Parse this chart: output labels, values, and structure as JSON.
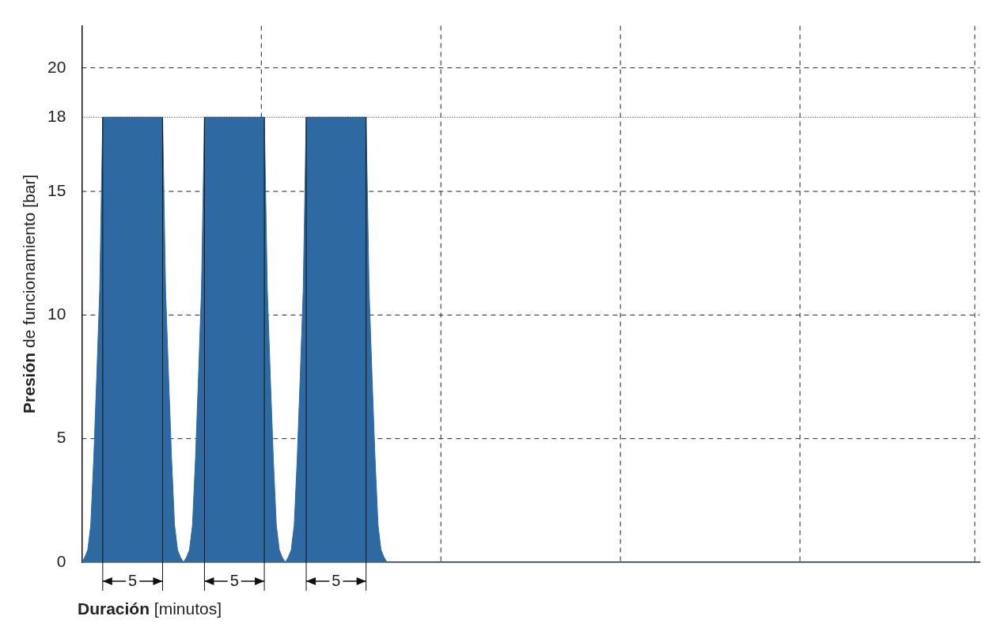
{
  "chart_data": {
    "type": "area",
    "xlabel": "Duración [minutos]",
    "ylabel": "Presión de funcionamiento [bar]",
    "categories": [
      null,
      null,
      null,
      null,
      null,
      null,
      null,
      null,
      null,
      null,
      null,
      null,
      null,
      null,
      null,
      null,
      null,
      null,
      null,
      null,
      null,
      null,
      null,
      null,
      null,
      null,
      null,
      null,
      null,
      null,
      null,
      null,
      null,
      null,
      null,
      null,
      null,
      null,
      null,
      null,
      null,
      null,
      null,
      null,
      null,
      null,
      null,
      null,
      null,
      null,
      null,
      null,
      null,
      null,
      null,
      null,
      null,
      null,
      null,
      null,
      null,
      null,
      null,
      null,
      null,
      null,
      null,
      null,
      null,
      null,
      null,
      null,
      null,
      null,
      null,
      null,
      null,
      null,
      null,
      null,
      null,
      null,
      null,
      null,
      null,
      null,
      null,
      null,
      null,
      null,
      null,
      null,
      null,
      null,
      null,
      null,
      null,
      null,
      null,
      null,
      null,
      null,
      null,
      null,
      null,
      null,
      null,
      null,
      null,
      null,
      null,
      null,
      null,
      null,
      null,
      null,
      null,
      null,
      null,
      null,
      null,
      null,
      null,
      null,
      null,
      null,
      null,
      null,
      null,
      null,
      null,
      null,
      null,
      null,
      null,
      null,
      null,
      null,
      null,
      null,
      null,
      null,
      null,
      null,
      null,
      null,
      null,
      null,
      null,
      null,
      null,
      null,
      null,
      null,
      null,
      null,
      null,
      null,
      null,
      null,
      null,
      null,
      null,
      null,
      null,
      null,
      null,
      null,
      null,
      null,
      null,
      null,
      null,
      null,
      null,
      null,
      null,
      null,
      null,
      null,
      null,
      null,
      null,
      null,
      null,
      null,
      null,
      null,
      null,
      null,
      null,
      null,
      null,
      null,
      null,
      null,
      null,
      null,
      null,
      null,
      null,
      null,
      null,
      null,
      null,
      null,
      null,
      null,
      null,
      null,
      null,
      null,
      null,
      null,
      null,
      null,
      null,
      null,
      null,
      null,
      null,
      null,
      null,
      null,
      null,
      null,
      null,
      null,
      null,
      null,
      null,
      null,
      null,
      null,
      null,
      null,
      null,
      null,
      null,
      null,
      null,
      null,
      null,
      null,
      null,
      null,
      null,
      null,
      null,
      null,
      null,
      null,
      null,
      null,
      null,
      null,
      null,
      null,
      null,
      null,
      null,
      null,
      null,
      null,
      null,
      null,
      null,
      null,
      null,
      null,
      null,
      null,
      null,
      null,
      null,
      null,
      null,
      null,
      null,
      null,
      null,
      null,
      null,
      null,
      null,
      null,
      null,
      null,
      null,
      null,
      null,
      null,
      null,
      null,
      null,
      null,
      null,
      null,
      null,
      null,
      null
    ],
    "series": [
      {
        "color": "#2e6aa1",
        "values": [
          0,
          0.2,
          0.5,
          1.5,
          4.2,
          7.5,
          11,
          18,
          18,
          18,
          18,
          18,
          18,
          18,
          18,
          18,
          18,
          18,
          18,
          18,
          18,
          18,
          18,
          18,
          18,
          18,
          18,
          18,
          11,
          7.5,
          4.2,
          1.5,
          0.5,
          0.2,
          0,
          0.2,
          0.5,
          1.5,
          4.2,
          7.5,
          11,
          18,
          18,
          18,
          18,
          18,
          18,
          18,
          18,
          18,
          18,
          18,
          18,
          18,
          18,
          18,
          18,
          18,
          18,
          18,
          18,
          18,
          11,
          7.5,
          4.2,
          1.5,
          0.5,
          0.2,
          0,
          0.2,
          0.5,
          1.5,
          4.2,
          7.5,
          11,
          18,
          18,
          18,
          18,
          18,
          18,
          18,
          18,
          18,
          18,
          18,
          18,
          18,
          18,
          18,
          18,
          18,
          18,
          18,
          18,
          18,
          11,
          7.5,
          4.2,
          1.5,
          0.5,
          0.2,
          0,
          0,
          0,
          0,
          0,
          0,
          0,
          0,
          0,
          0,
          0,
          0,
          0,
          0,
          0,
          0,
          0,
          0,
          0,
          0,
          0,
          0,
          0,
          0,
          0,
          0,
          0,
          0,
          0,
          0,
          0,
          0,
          0,
          0,
          0,
          0,
          0,
          0,
          0,
          0,
          0,
          0,
          0,
          0,
          0,
          0,
          0,
          0,
          0,
          0,
          0,
          0,
          0,
          0,
          0,
          0,
          0,
          0,
          0,
          0,
          0,
          0,
          0,
          0,
          0,
          0,
          0,
          0,
          0,
          0,
          0,
          0,
          0,
          0,
          0,
          0,
          0,
          0,
          0,
          0,
          0,
          0,
          0,
          0,
          0,
          0,
          0,
          0,
          0,
          0,
          0,
          0,
          0,
          0,
          0,
          0,
          0,
          0,
          0,
          0,
          0,
          0,
          0,
          0,
          0,
          0,
          0,
          0,
          0,
          0,
          0,
          0,
          0,
          0,
          0,
          0,
          0,
          0,
          0,
          0,
          0,
          0,
          0,
          0,
          0,
          0,
          0,
          0,
          0,
          0,
          0,
          0,
          0,
          0,
          0,
          0,
          0,
          0,
          0,
          0,
          0,
          0,
          0,
          0,
          0,
          0,
          0,
          0,
          0,
          0,
          0,
          0,
          0,
          0,
          0,
          0,
          0,
          0,
          0,
          0,
          0,
          0,
          0,
          0,
          0,
          0,
          0,
          0,
          0,
          0,
          0,
          0,
          0,
          0,
          0,
          0,
          0,
          0,
          0,
          0,
          0,
          0,
          0,
          0,
          0,
          0,
          0,
          0,
          0,
          0,
          0,
          0,
          0,
          0,
          0,
          0,
          0,
          0,
          0
        ]
      }
    ],
    "ylim": [
      0,
      21.7
    ],
    "yticks": [
      0,
      5,
      10,
      15,
      18,
      20
    ],
    "tick_labels": "y",
    "grid": true,
    "legend": false,
    "ref_lines": [
      {
        "axis": "y",
        "value": 18,
        "line_style": "dotted"
      }
    ],
    "annotations": [
      "5",
      "5",
      "5"
    ]
  }
}
